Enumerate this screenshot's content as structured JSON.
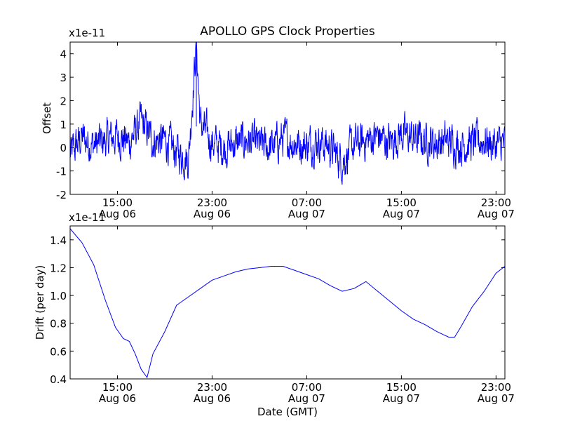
{
  "figure": {
    "title": "APOLLO GPS Clock Properties"
  },
  "chart_data": [
    {
      "type": "line",
      "title": "APOLLO GPS Clock Properties",
      "ylabel": "Offset",
      "y_scale_label": "x1e-11",
      "xlabel": "",
      "xlim": [
        "2008-08-06 11:00",
        "2008-08-07 23:45"
      ],
      "ylim": [
        -2,
        4.5
      ],
      "yticks": [
        -2,
        -1,
        0,
        1,
        2,
        3,
        4
      ],
      "ytick_labels": [
        "-2",
        "-1",
        "0",
        "1",
        "2",
        "3",
        "4"
      ],
      "xticks": [
        "2008-08-06 15:00",
        "2008-08-06 23:00",
        "2008-08-07 07:00",
        "2008-08-07 15:00",
        "2008-08-07 23:00"
      ],
      "xtick_labels": [
        [
          "15:00",
          "Aug 06"
        ],
        [
          "23:00",
          "Aug 06"
        ],
        [
          "07:00",
          "Aug 07"
        ],
        [
          "15:00",
          "Aug 07"
        ],
        [
          "23:00",
          "Aug 07"
        ]
      ],
      "grid": false,
      "color": "#0000ff",
      "series": [
        {
          "noisy": true,
          "x": [
            "2008-08-06 11:00",
            "2008-08-06 12:00",
            "2008-08-06 13:00",
            "2008-08-06 14:00",
            "2008-08-06 15:00",
            "2008-08-06 16:00",
            "2008-08-06 17:00",
            "2008-08-06 18:00",
            "2008-08-06 19:00",
            "2008-08-06 20:00",
            "2008-08-06 21:00",
            "2008-08-06 21:40",
            "2008-08-06 22:00",
            "2008-08-06 23:00",
            "2008-08-07 00:00",
            "2008-08-07 01:00",
            "2008-08-07 02:00",
            "2008-08-07 03:00",
            "2008-08-07 04:00",
            "2008-08-07 05:00",
            "2008-08-07 06:00",
            "2008-08-07 07:00",
            "2008-08-07 08:00",
            "2008-08-07 09:00",
            "2008-08-07 10:00",
            "2008-08-07 11:00",
            "2008-08-07 12:00",
            "2008-08-07 13:00",
            "2008-08-07 14:00",
            "2008-08-07 15:00",
            "2008-08-07 16:00",
            "2008-08-07 17:00",
            "2008-08-07 18:00",
            "2008-08-07 19:00",
            "2008-08-07 20:00",
            "2008-08-07 21:00",
            "2008-08-07 22:00",
            "2008-08-07 23:00",
            "2008-08-07 23:45"
          ],
          "y": [
            -0.3,
            0.4,
            0.1,
            0.3,
            0.5,
            0.2,
            1.1,
            0.3,
            0.3,
            -0.2,
            -0.5,
            4.5,
            1.0,
            0.2,
            0.0,
            0.2,
            0.3,
            0.1,
            0.0,
            0.4,
            0.2,
            0.1,
            0.3,
            0.0,
            -0.6,
            0.1,
            0.3,
            0.5,
            0.2,
            0.6,
            0.4,
            0.3,
            0.2,
            0.3,
            0.1,
            0.2,
            0.3,
            0.1,
            0.2
          ]
        }
      ]
    },
    {
      "type": "line",
      "ylabel": "Drift (per day)",
      "y_scale_label": "x1e-11",
      "xlabel": "Date (GMT)",
      "xlim": [
        "2008-08-06 11:00",
        "2008-08-07 23:45"
      ],
      "ylim": [
        0.4,
        1.5
      ],
      "yticks": [
        0.4,
        0.6,
        0.8,
        1.0,
        1.2,
        1.4
      ],
      "ytick_labels": [
        "0.4",
        "0.6",
        "0.8",
        "1.0",
        "1.2",
        "1.4"
      ],
      "xticks": [
        "2008-08-06 15:00",
        "2008-08-06 23:00",
        "2008-08-07 07:00",
        "2008-08-07 15:00",
        "2008-08-07 23:00"
      ],
      "xtick_labels": [
        [
          "15:00",
          "Aug 06"
        ],
        [
          "23:00",
          "Aug 06"
        ],
        [
          "07:00",
          "Aug 07"
        ],
        [
          "15:00",
          "Aug 07"
        ],
        [
          "23:00",
          "Aug 07"
        ]
      ],
      "grid": false,
      "color": "#0000ff",
      "series": [
        {
          "x": [
            "2008-08-06 11:00",
            "2008-08-06 12:00",
            "2008-08-06 13:00",
            "2008-08-06 14:00",
            "2008-08-06 14:50",
            "2008-08-06 15:30",
            "2008-08-06 16:00",
            "2008-08-06 16:30",
            "2008-08-06 17:00",
            "2008-08-06 17:30",
            "2008-08-06 18:00",
            "2008-08-06 19:00",
            "2008-08-06 20:00",
            "2008-08-06 21:00",
            "2008-08-06 22:00",
            "2008-08-06 23:00",
            "2008-08-07 00:00",
            "2008-08-07 01:00",
            "2008-08-07 02:00",
            "2008-08-07 03:00",
            "2008-08-07 04:00",
            "2008-08-07 05:00",
            "2008-08-07 06:00",
            "2008-08-07 07:00",
            "2008-08-07 08:00",
            "2008-08-07 09:00",
            "2008-08-07 10:00",
            "2008-08-07 11:00",
            "2008-08-07 12:00",
            "2008-08-07 13:00",
            "2008-08-07 14:00",
            "2008-08-07 15:00",
            "2008-08-07 16:00",
            "2008-08-07 17:00",
            "2008-08-07 18:00",
            "2008-08-07 19:00",
            "2008-08-07 19:30",
            "2008-08-07 20:00",
            "2008-08-07 21:00",
            "2008-08-07 22:00",
            "2008-08-07 23:00",
            "2008-08-07 23:45"
          ],
          "y": [
            1.48,
            1.38,
            1.22,
            0.96,
            0.77,
            0.69,
            0.67,
            0.58,
            0.47,
            0.41,
            0.58,
            0.74,
            0.93,
            0.99,
            1.05,
            1.11,
            1.14,
            1.17,
            1.19,
            1.2,
            1.21,
            1.21,
            1.18,
            1.15,
            1.12,
            1.07,
            1.03,
            1.05,
            1.1,
            1.03,
            0.96,
            0.89,
            0.83,
            0.79,
            0.74,
            0.7,
            0.7,
            0.77,
            0.92,
            1.03,
            1.16,
            1.21
          ]
        }
      ]
    }
  ]
}
